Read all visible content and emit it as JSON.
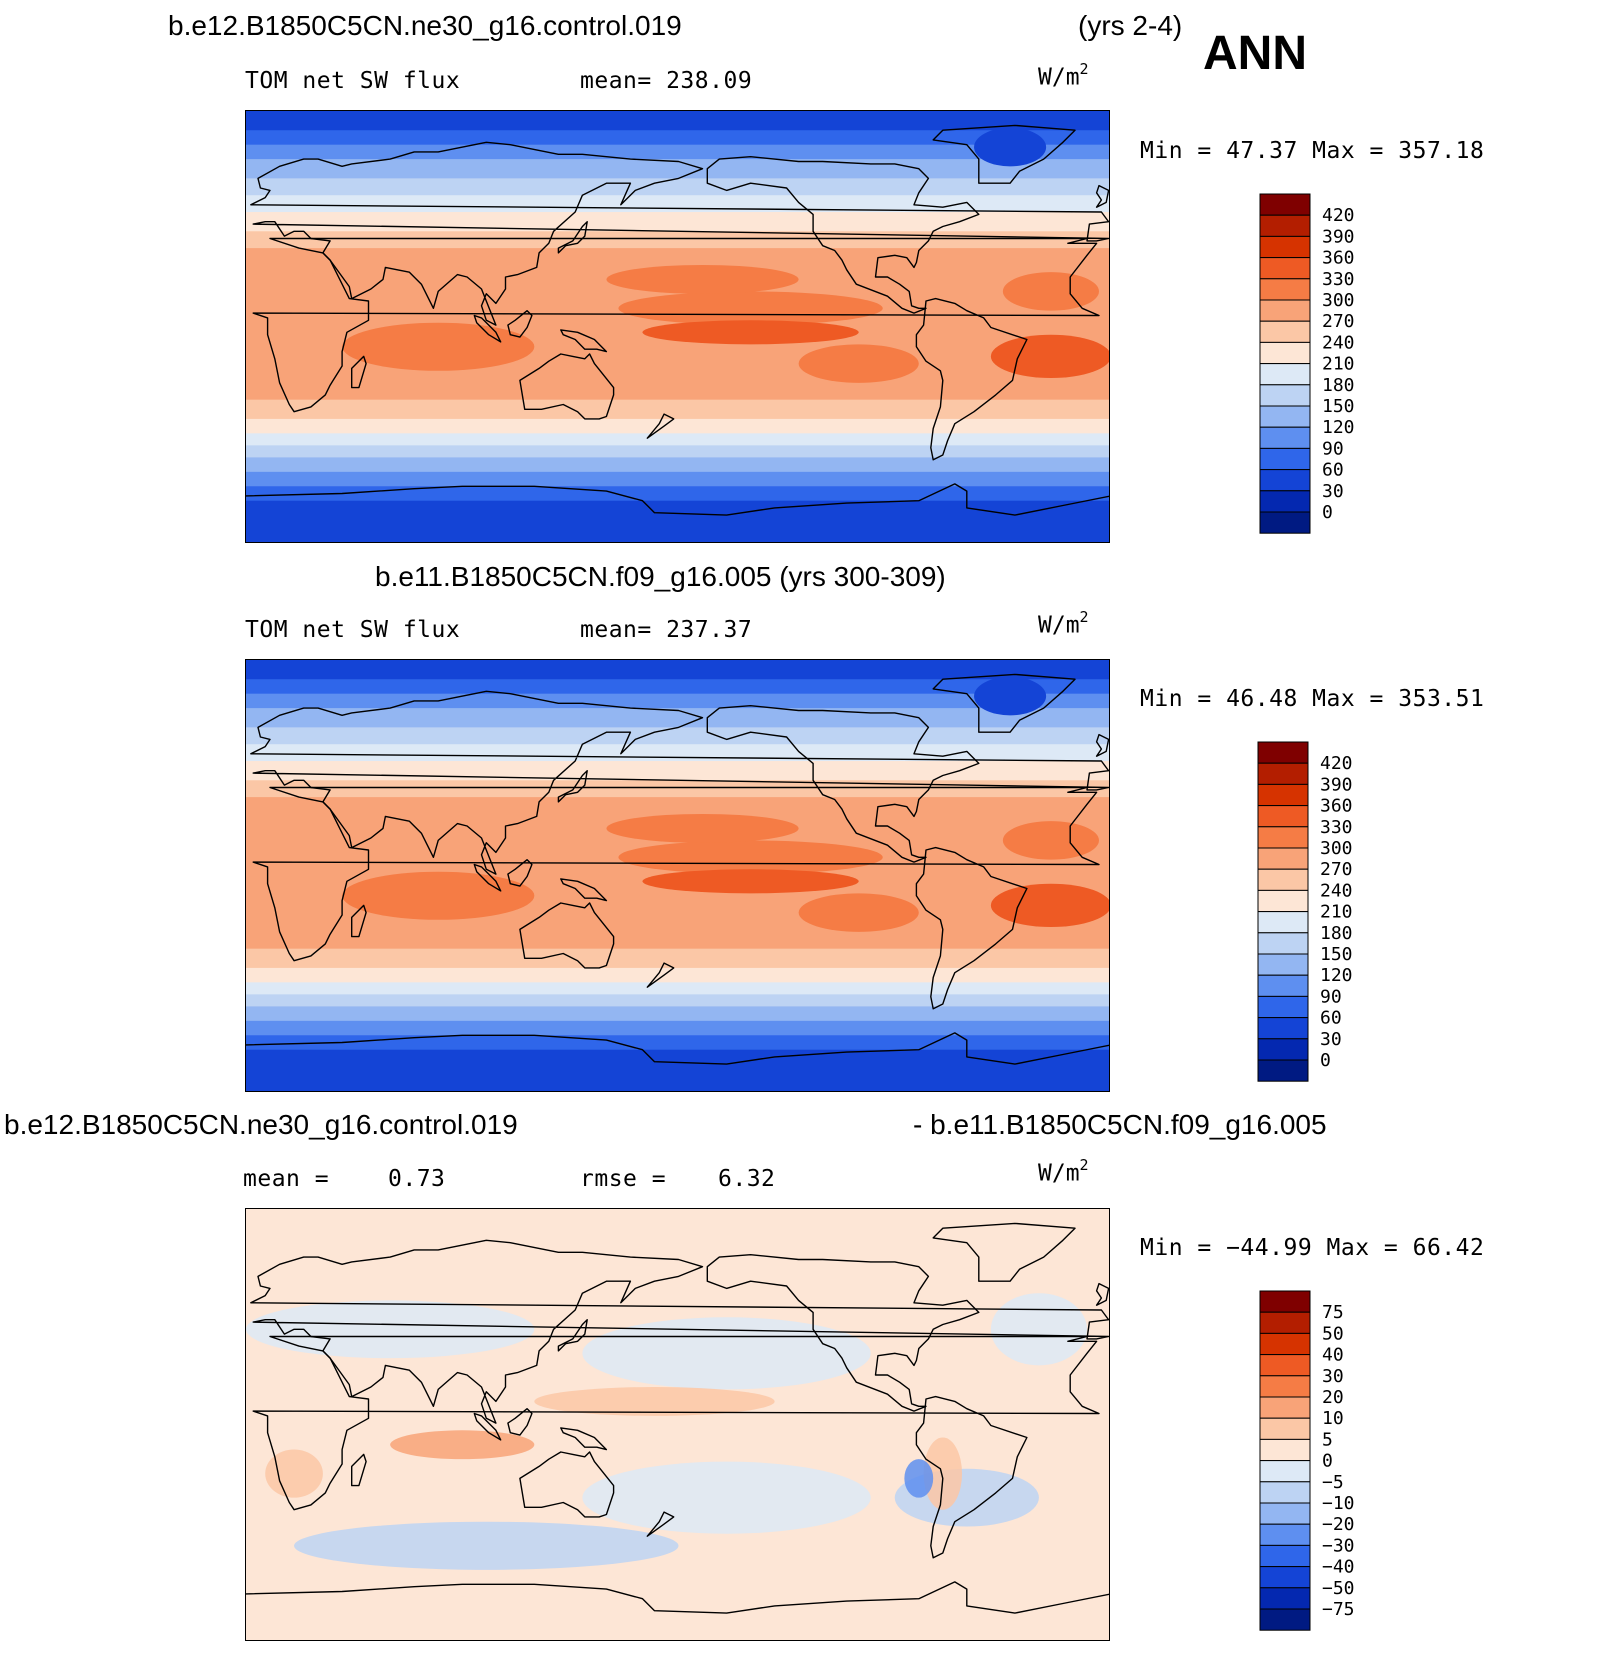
{
  "header": {
    "case1": "b.e12.B1850C5CN.ne30_g16.control.019",
    "years1": "(yrs 2-4)",
    "season": "ANN",
    "case2_title": "b.e11.B1850C5CN.f09_g16.005 (yrs 300-309)",
    "diff_left": "b.e12.B1850C5CN.ne30_g16.control.019",
    "diff_right": "- b.e11.B1850C5CN.f09_g16.005"
  },
  "panels": [
    {
      "id": "control",
      "variable": "TOM net SW flux",
      "stat_text": "mean= 238.09",
      "units": "W/m",
      "units_exp": "2",
      "minmax": "Min =   47.37 Max =  357.18",
      "scale": "abs"
    },
    {
      "id": "reference",
      "variable": "TOM net SW flux",
      "stat_text": "mean= 237.37",
      "units": "W/m",
      "units_exp": "2",
      "minmax": "Min =   46.48 Max =  353.51",
      "scale": "abs"
    },
    {
      "id": "difference",
      "mean_label": "mean =",
      "mean_value": "0.73",
      "rmse_label": "rmse =",
      "rmse_value": "6.32",
      "units": "W/m",
      "units_exp": "2",
      "minmax": "Min = −44.99 Max =   66.42",
      "scale": "diff"
    }
  ],
  "colorbars": {
    "abs": {
      "levels": [
        "420",
        "390",
        "360",
        "330",
        "300",
        "270",
        "240",
        "210",
        "180",
        "150",
        "120",
        "90",
        "60",
        "30",
        "0"
      ],
      "colors": [
        "#7f0000",
        "#b31e00",
        "#d63300",
        "#ee5a24",
        "#f57c45",
        "#f8a378",
        "#fbc7a6",
        "#fde6d6",
        "#dde9f6",
        "#bdd3f3",
        "#93b6f2",
        "#5e8ff0",
        "#2f66ea",
        "#1444d6",
        "#0428b0",
        "#001a82"
      ]
    },
    "diff": {
      "levels": [
        "75",
        "50",
        "40",
        "30",
        "20",
        "10",
        "5",
        "0",
        "−5",
        "−10",
        "−20",
        "−30",
        "−40",
        "−50",
        "−75"
      ],
      "colors": [
        "#7f0000",
        "#b31e00",
        "#d63300",
        "#ee5a24",
        "#f57c45",
        "#f8a378",
        "#fbc7a6",
        "#fde6d6",
        "#dde9f6",
        "#bdd3f3",
        "#93b6f2",
        "#5e8ff0",
        "#2f66ea",
        "#1444d6",
        "#0428b0",
        "#001a82"
      ]
    }
  }
}
